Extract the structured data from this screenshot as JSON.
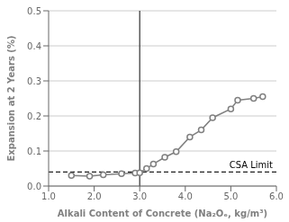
{
  "chart_data": {
    "type": "line",
    "xlabel": "Alkali Content of Concrete (Na₂Oₑ, kg/m³)",
    "ylabel": "Expansion at 2 Years (%)",
    "x": [
      1.5,
      1.9,
      2.2,
      2.6,
      2.9,
      3.0,
      3.15,
      3.3,
      3.55,
      3.8,
      4.1,
      4.35,
      4.6,
      5.0,
      5.15,
      5.5,
      5.7
    ],
    "values": [
      0.03,
      0.028,
      0.032,
      0.035,
      0.037,
      0.038,
      0.05,
      0.063,
      0.082,
      0.098,
      0.14,
      0.16,
      0.195,
      0.22,
      0.245,
      0.25,
      0.255
    ],
    "color": "#808080",
    "marker": "circle",
    "xlim": [
      1.0,
      6.0
    ],
    "ylim": [
      0.0,
      0.5
    ],
    "xticks": [
      {
        "value": 1.0,
        "label": "1.0"
      },
      {
        "value": 2.0,
        "label": "2.0"
      },
      {
        "value": 3.0,
        "label": "3.0"
      },
      {
        "value": 4.0,
        "label": "4.0"
      },
      {
        "value": 5.0,
        "label": "5.0"
      },
      {
        "value": 6.0,
        "label": "6.0"
      }
    ],
    "yticks": [
      {
        "value": 0.0,
        "label": "0.0"
      },
      0.1,
      0.2,
      0.3,
      0.4,
      0.5
    ],
    "grid": "y",
    "reference_lines": [
      {
        "axis": "y",
        "value": 0.04,
        "label": "CSA Limit",
        "color": "#202020",
        "line_style": "dashed"
      },
      {
        "axis": "x",
        "value": 3.0,
        "color": "#404040",
        "line_style": "solid"
      }
    ]
  }
}
